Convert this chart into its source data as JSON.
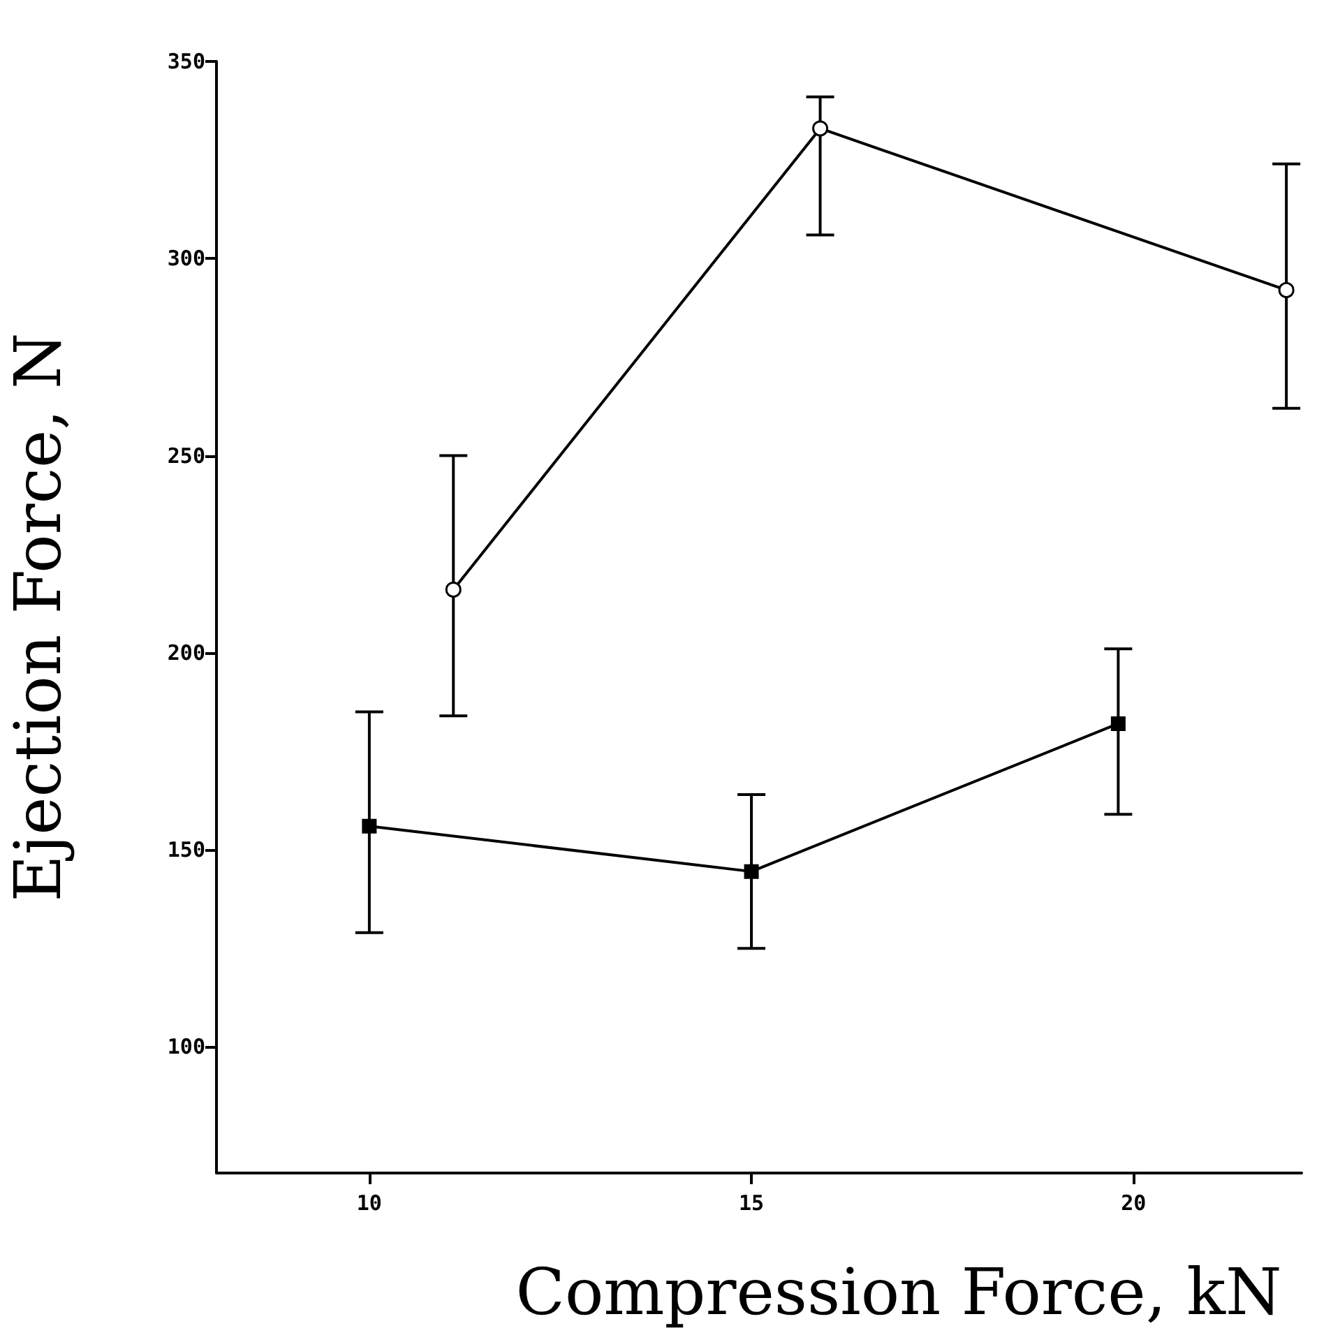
{
  "chart_data": {
    "type": "line",
    "xlabel": "Compression Force, kN",
    "ylabel": "Ejection Force, N",
    "xlim": [
      8,
      22.2
    ],
    "xticks": [
      10,
      15,
      20
    ],
    "ylim": [
      68,
      350
    ],
    "yticks": [
      100,
      150,
      200,
      250,
      300,
      350
    ],
    "grid": false,
    "line_style": "solid",
    "series": [
      {
        "color": "#000000",
        "marker": "circle",
        "x": [
          11.1,
          15.9,
          22.0
        ],
        "values": [
          216,
          333,
          292
        ],
        "errors": [
          [
            184,
            250
          ],
          [
            306,
            341
          ],
          [
            262,
            324
          ]
        ]
      },
      {
        "color": "#000000",
        "marker": "square",
        "x": [
          10,
          15,
          19.8
        ],
        "values": [
          156,
          144.5,
          182
        ],
        "errors": [
          [
            129,
            185
          ],
          [
            125,
            164
          ],
          [
            159,
            201
          ]
        ]
      }
    ]
  }
}
